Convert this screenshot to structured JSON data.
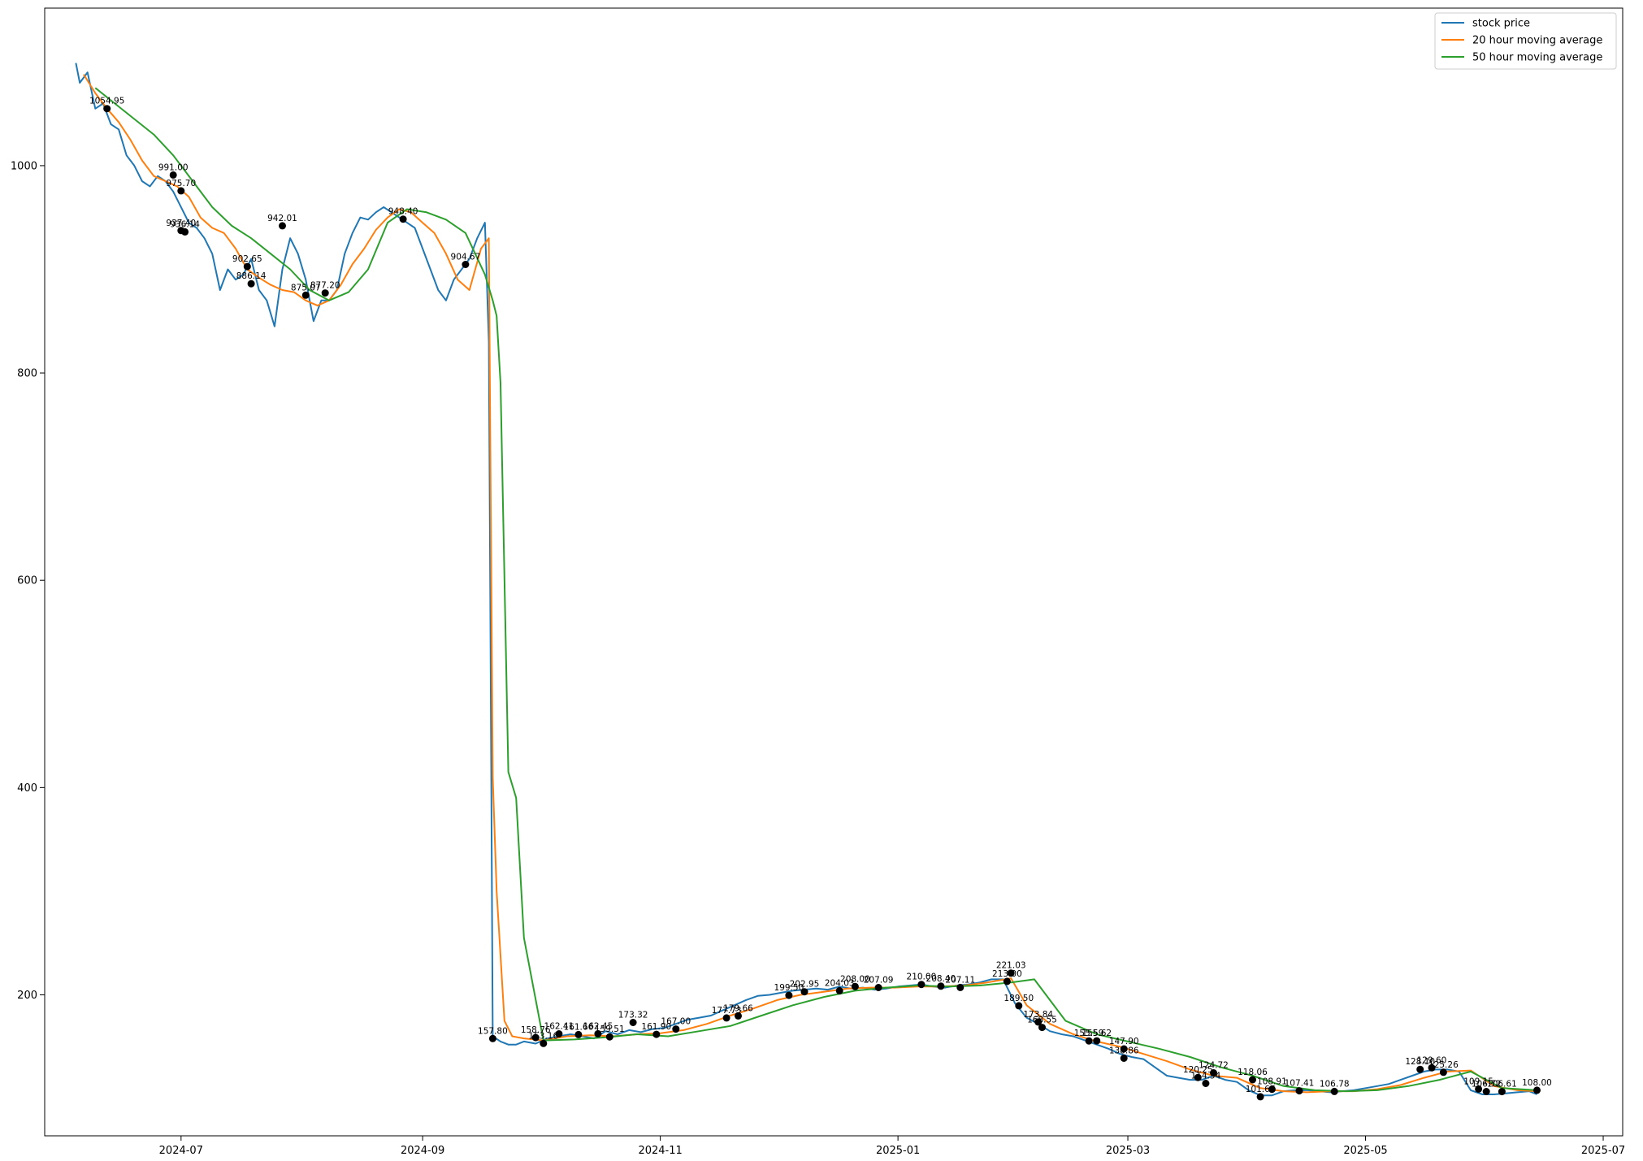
{
  "chart_data": {
    "type": "line",
    "title": "",
    "xlabel": "",
    "ylabel": "",
    "xlim": [
      "2024-05-27",
      "2025-07-06"
    ],
    "ylim": [
      64,
      1152
    ],
    "grid": false,
    "legend_placement": "top-right",
    "x_ticks": [
      "2024-07",
      "2024-09",
      "2024-11",
      "2025-01",
      "2025-03",
      "2025-05",
      "2025-07"
    ],
    "x_tick_dates": [
      "2024-07-01",
      "2024-09-01",
      "2024-11-01",
      "2025-01-01",
      "2025-03-01",
      "2025-05-01",
      "2025-07-01"
    ],
    "y_ticks": [
      "200",
      "400",
      "600",
      "800",
      "1000"
    ],
    "y_tick_values": [
      200,
      400,
      600,
      800,
      1000
    ],
    "colors": {
      "stock": "#1f77b4",
      "ma20": "#ff7f0e",
      "ma50": "#2ca02c",
      "marker": "#000000"
    },
    "series": [
      {
        "name": "stock price",
        "color": "#1f77b4",
        "x": [
          "2024-06-04",
          "2024-06-05",
          "2024-06-07",
          "2024-06-09",
          "2024-06-11",
          "2024-06-13",
          "2024-06-15",
          "2024-06-17",
          "2024-06-19",
          "2024-06-21",
          "2024-06-23",
          "2024-06-25",
          "2024-06-27",
          "2024-06-29",
          "2024-07-01",
          "2024-07-03",
          "2024-07-05",
          "2024-07-07",
          "2024-07-09",
          "2024-07-11",
          "2024-07-13",
          "2024-07-15",
          "2024-07-17",
          "2024-07-19",
          "2024-07-21",
          "2024-07-23",
          "2024-07-25",
          "2024-07-27",
          "2024-07-29",
          "2024-07-31",
          "2024-08-02",
          "2024-08-04",
          "2024-08-06",
          "2024-08-08",
          "2024-08-10",
          "2024-08-12",
          "2024-08-14",
          "2024-08-16",
          "2024-08-18",
          "2024-08-20",
          "2024-08-22",
          "2024-08-24",
          "2024-08-26",
          "2024-08-28",
          "2024-08-30",
          "2024-09-01",
          "2024-09-03",
          "2024-09-05",
          "2024-09-07",
          "2024-09-09",
          "2024-09-11",
          "2024-09-13",
          "2024-09-15",
          "2024-09-17",
          "2024-09-18",
          "2024-09-19",
          "2024-09-21",
          "2024-09-23",
          "2024-09-25",
          "2024-09-27",
          "2024-09-30",
          "2024-10-03",
          "2024-10-06",
          "2024-10-09",
          "2024-10-12",
          "2024-10-15",
          "2024-10-18",
          "2024-10-21",
          "2024-10-24",
          "2024-10-27",
          "2024-10-30",
          "2024-11-02",
          "2024-11-05",
          "2024-11-08",
          "2024-11-11",
          "2024-11-14",
          "2024-11-17",
          "2024-11-20",
          "2024-11-23",
          "2024-11-26",
          "2024-11-29",
          "2024-12-02",
          "2024-12-05",
          "2024-12-08",
          "2024-12-11",
          "2024-12-14",
          "2024-12-17",
          "2024-12-20",
          "2024-12-23",
          "2024-12-26",
          "2024-12-29",
          "2025-01-01",
          "2025-01-04",
          "2025-01-07",
          "2025-01-10",
          "2025-01-13",
          "2025-01-16",
          "2025-01-19",
          "2025-01-22",
          "2025-01-25",
          "2025-01-28",
          "2025-01-31",
          "2025-02-03",
          "2025-02-06",
          "2025-02-09",
          "2025-02-12",
          "2025-02-15",
          "2025-02-18",
          "2025-02-21",
          "2025-02-24",
          "2025-02-27",
          "2025-03-02",
          "2025-03-05",
          "2025-03-08",
          "2025-03-11",
          "2025-03-14",
          "2025-03-17",
          "2025-03-20",
          "2025-03-23",
          "2025-03-26",
          "2025-03-29",
          "2025-04-01",
          "2025-04-04",
          "2025-04-07",
          "2025-04-10",
          "2025-04-13",
          "2025-04-16",
          "2025-04-19",
          "2025-04-22",
          "2025-04-25",
          "2025-04-28",
          "2025-05-01",
          "2025-05-04",
          "2025-05-07",
          "2025-05-10",
          "2025-05-13",
          "2025-05-16",
          "2025-05-19",
          "2025-05-22",
          "2025-05-25",
          "2025-05-28",
          "2025-05-31",
          "2025-06-03",
          "2025-06-06",
          "2025-06-09",
          "2025-06-12",
          "2025-06-14"
        ],
        "y": [
          1099,
          1080,
          1090,
          1055,
          1060,
          1040,
          1035,
          1010,
          1000,
          985,
          980,
          990,
          985,
          975,
          960,
          945,
          940,
          930,
          915,
          880,
          900,
          890,
          895,
          910,
          880,
          870,
          845,
          900,
          930,
          915,
          890,
          850,
          870,
          870,
          880,
          915,
          935,
          950,
          948,
          955,
          960,
          955,
          950,
          945,
          940,
          920,
          900,
          880,
          870,
          890,
          900,
          910,
          930,
          945,
          830,
          160,
          155,
          152,
          152,
          155,
          153,
          158,
          160,
          162,
          160,
          158,
          165,
          162,
          166,
          164,
          167,
          168,
          172,
          176,
          178,
          180,
          185,
          190,
          195,
          199,
          200,
          202,
          204,
          205,
          206,
          205,
          208,
          206,
          207,
          205,
          206,
          208,
          209,
          210,
          208,
          207,
          209,
          210,
          212,
          215,
          215,
          192,
          178,
          172,
          165,
          162,
          160,
          156,
          152,
          148,
          143,
          140,
          138,
          130,
          122,
          120,
          118,
          118,
          122,
          118,
          116,
          108,
          103,
          103,
          107,
          108,
          108,
          107,
          106,
          107,
          108,
          110,
          112,
          114,
          118,
          122,
          126,
          128,
          128,
          126,
          108,
          104,
          104,
          105,
          106,
          107,
          104
        ]
      },
      {
        "name": "20 hour moving average",
        "color": "#ff7f0e",
        "x": [
          "2024-06-06",
          "2024-06-09",
          "2024-06-12",
          "2024-06-15",
          "2024-06-18",
          "2024-06-21",
          "2024-06-24",
          "2024-06-27",
          "2024-06-30",
          "2024-07-03",
          "2024-07-06",
          "2024-07-09",
          "2024-07-12",
          "2024-07-15",
          "2024-07-18",
          "2024-07-21",
          "2024-07-24",
          "2024-07-27",
          "2024-07-30",
          "2024-08-02",
          "2024-08-05",
          "2024-08-08",
          "2024-08-11",
          "2024-08-14",
          "2024-08-17",
          "2024-08-20",
          "2024-08-23",
          "2024-08-26",
          "2024-08-29",
          "2024-09-01",
          "2024-09-04",
          "2024-09-07",
          "2024-09-10",
          "2024-09-13",
          "2024-09-16",
          "2024-09-18",
          "2024-09-19",
          "2024-09-20",
          "2024-09-22",
          "2024-09-24",
          "2024-09-27",
          "2024-10-02",
          "2024-10-08",
          "2024-10-14",
          "2024-10-20",
          "2024-10-26",
          "2024-11-01",
          "2024-11-07",
          "2024-11-13",
          "2024-11-19",
          "2024-11-25",
          "2024-12-01",
          "2024-12-07",
          "2024-12-13",
          "2024-12-19",
          "2024-12-25",
          "2024-12-31",
          "2025-01-06",
          "2025-01-12",
          "2025-01-18",
          "2025-01-24",
          "2025-01-30",
          "2025-02-03",
          "2025-02-09",
          "2025-02-15",
          "2025-02-21",
          "2025-02-27",
          "2025-03-05",
          "2025-03-11",
          "2025-03-17",
          "2025-03-23",
          "2025-03-29",
          "2025-04-04",
          "2025-04-10",
          "2025-04-16",
          "2025-04-22",
          "2025-04-28",
          "2025-05-04",
          "2025-05-10",
          "2025-05-16",
          "2025-05-22",
          "2025-05-28",
          "2025-06-03",
          "2025-06-09",
          "2025-06-14"
        ],
        "y": [
          1088,
          1070,
          1055,
          1042,
          1025,
          1005,
          990,
          985,
          980,
          970,
          950,
          940,
          935,
          920,
          900,
          892,
          885,
          880,
          878,
          870,
          865,
          870,
          885,
          905,
          920,
          938,
          950,
          958,
          955,
          945,
          935,
          915,
          890,
          880,
          920,
          930,
          410,
          300,
          175,
          160,
          158,
          156,
          160,
          161,
          160,
          162,
          163,
          166,
          172,
          180,
          187,
          195,
          200,
          203,
          206,
          207,
          207,
          208,
          208,
          209,
          212,
          216,
          190,
          172,
          162,
          155,
          150,
          143,
          136,
          128,
          122,
          120,
          110,
          107,
          106,
          107,
          107,
          109,
          113,
          120,
          126,
          127,
          112,
          108,
          107
        ]
      },
      {
        "name": "50 hour moving average",
        "color": "#2ca02c",
        "x": [
          "2024-06-09",
          "2024-06-14",
          "2024-06-19",
          "2024-06-24",
          "2024-06-29",
          "2024-07-04",
          "2024-07-09",
          "2024-07-14",
          "2024-07-19",
          "2024-07-24",
          "2024-07-29",
          "2024-08-03",
          "2024-08-08",
          "2024-08-13",
          "2024-08-18",
          "2024-08-23",
          "2024-08-28",
          "2024-09-02",
          "2024-09-07",
          "2024-09-12",
          "2024-09-17",
          "2024-09-19",
          "2024-09-20",
          "2024-09-21",
          "2024-09-23",
          "2024-09-25",
          "2024-09-27",
          "2024-10-02",
          "2024-10-10",
          "2024-10-18",
          "2024-10-26",
          "2024-11-03",
          "2024-11-11",
          "2024-11-19",
          "2024-11-27",
          "2024-12-05",
          "2024-12-13",
          "2024-12-21",
          "2024-12-29",
          "2025-01-06",
          "2025-01-14",
          "2025-01-22",
          "2025-01-30",
          "2025-02-05",
          "2025-02-13",
          "2025-02-21",
          "2025-03-01",
          "2025-03-09",
          "2025-03-17",
          "2025-03-25",
          "2025-04-02",
          "2025-04-10",
          "2025-04-18",
          "2025-04-26",
          "2025-05-04",
          "2025-05-12",
          "2025-05-20",
          "2025-05-28",
          "2025-06-05",
          "2025-06-14"
        ],
        "y": [
          1075,
          1060,
          1045,
          1030,
          1010,
          985,
          960,
          942,
          930,
          915,
          900,
          880,
          870,
          878,
          900,
          945,
          958,
          955,
          948,
          935,
          895,
          870,
          855,
          790,
          415,
          390,
          255,
          156,
          157,
          159,
          162,
          160,
          165,
          170,
          180,
          190,
          198,
          204,
          207,
          209,
          208,
          209,
          212,
          215,
          175,
          162,
          155,
          148,
          140,
          130,
          122,
          112,
          108,
          107,
          108,
          112,
          118,
          126,
          110,
          108
        ]
      }
    ],
    "annotations": [
      {
        "label": "1054.95",
        "x": "2024-06-12",
        "y": 1055
      },
      {
        "label": "991.00",
        "x": "2024-06-29",
        "y": 991
      },
      {
        "label": "975.70",
        "x": "2024-07-01",
        "y": 975.7
      },
      {
        "label": "937.40",
        "x": "2024-07-01",
        "y": 937.4
      },
      {
        "label": "936.14",
        "x": "2024-07-02",
        "y": 936.14
      },
      {
        "label": "902.65",
        "x": "2024-07-18",
        "y": 902.65
      },
      {
        "label": "886.14",
        "x": "2024-07-19",
        "y": 886.14
      },
      {
        "label": "942.01",
        "x": "2024-07-27",
        "y": 942.01
      },
      {
        "label": "875.07",
        "x": "2024-08-02",
        "y": 875.07
      },
      {
        "label": "877.20",
        "x": "2024-08-07",
        "y": 877.2
      },
      {
        "label": "948.40",
        "x": "2024-08-27",
        "y": 948.4
      },
      {
        "label": "904.67",
        "x": "2024-09-12",
        "y": 904.67
      },
      {
        "label": "157.80",
        "x": "2024-09-19",
        "y": 157.8
      },
      {
        "label": "158.76",
        "x": "2024-09-30",
        "y": 158.76
      },
      {
        "label": "153.16",
        "x": "2024-10-02",
        "y": 153.16
      },
      {
        "label": "162.41",
        "x": "2024-10-06",
        "y": 162.41
      },
      {
        "label": "161.66",
        "x": "2024-10-11",
        "y": 161.66
      },
      {
        "label": "162.45",
        "x": "2024-10-16",
        "y": 162.45
      },
      {
        "label": "159.51",
        "x": "2024-10-19",
        "y": 159.51
      },
      {
        "label": "173.32",
        "x": "2024-10-25",
        "y": 173.32
      },
      {
        "label": "161.90",
        "x": "2024-10-31",
        "y": 161.9
      },
      {
        "label": "167.00",
        "x": "2024-11-05",
        "y": 167
      },
      {
        "label": "177.73",
        "x": "2024-11-18",
        "y": 177.73
      },
      {
        "label": "179.66",
        "x": "2024-11-21",
        "y": 179.66
      },
      {
        "label": "199.50",
        "x": "2024-12-04",
        "y": 199.5
      },
      {
        "label": "202.95",
        "x": "2024-12-08",
        "y": 202.95
      },
      {
        "label": "204.03",
        "x": "2024-12-17",
        "y": 204.03
      },
      {
        "label": "208.00",
        "x": "2024-12-21",
        "y": 208
      },
      {
        "label": "207.09",
        "x": "2024-12-27",
        "y": 207.09
      },
      {
        "label": "210.00",
        "x": "2025-01-07",
        "y": 210
      },
      {
        "label": "208.40",
        "x": "2025-01-12",
        "y": 208.4
      },
      {
        "label": "207.11",
        "x": "2025-01-17",
        "y": 207.11
      },
      {
        "label": "221.03",
        "x": "2025-01-30",
        "y": 221.03
      },
      {
        "label": "213.00",
        "x": "2025-01-29",
        "y": 213
      },
      {
        "label": "189.50",
        "x": "2025-02-01",
        "y": 189.5
      },
      {
        "label": "173.84",
        "x": "2025-02-06",
        "y": 173.84
      },
      {
        "label": "168.55",
        "x": "2025-02-07",
        "y": 168.55
      },
      {
        "label": "155.59",
        "x": "2025-02-19",
        "y": 155.59
      },
      {
        "label": "155.62",
        "x": "2025-02-21",
        "y": 155.62
      },
      {
        "label": "147.90",
        "x": "2025-02-28",
        "y": 147.9
      },
      {
        "label": "138.86",
        "x": "2025-02-28",
        "y": 138.86
      },
      {
        "label": "120.25",
        "x": "2025-03-19",
        "y": 120.25
      },
      {
        "label": "124.72",
        "x": "2025-03-23",
        "y": 124.72
      },
      {
        "label": "114.54",
        "x": "2025-03-21",
        "y": 114.54
      },
      {
        "label": "118.06",
        "x": "2025-04-02",
        "y": 118.06
      },
      {
        "label": "108.91",
        "x": "2025-04-07",
        "y": 108.91
      },
      {
        "label": "101.67",
        "x": "2025-04-04",
        "y": 101.67
      },
      {
        "label": "107.41",
        "x": "2025-04-14",
        "y": 107.41
      },
      {
        "label": "106.78",
        "x": "2025-04-23",
        "y": 106.78
      },
      {
        "label": "128.10",
        "x": "2025-05-15",
        "y": 128.1
      },
      {
        "label": "129.60",
        "x": "2025-05-18",
        "y": 129.6
      },
      {
        "label": "125.26",
        "x": "2025-05-21",
        "y": 125.26
      },
      {
        "label": "109.15",
        "x": "2025-05-30",
        "y": 109.15
      },
      {
        "label": "106.72",
        "x": "2025-06-01",
        "y": 106.72
      },
      {
        "label": "106.61",
        "x": "2025-06-05",
        "y": 106.61
      },
      {
        "label": "108.00",
        "x": "2025-06-14",
        "y": 108
      }
    ]
  }
}
